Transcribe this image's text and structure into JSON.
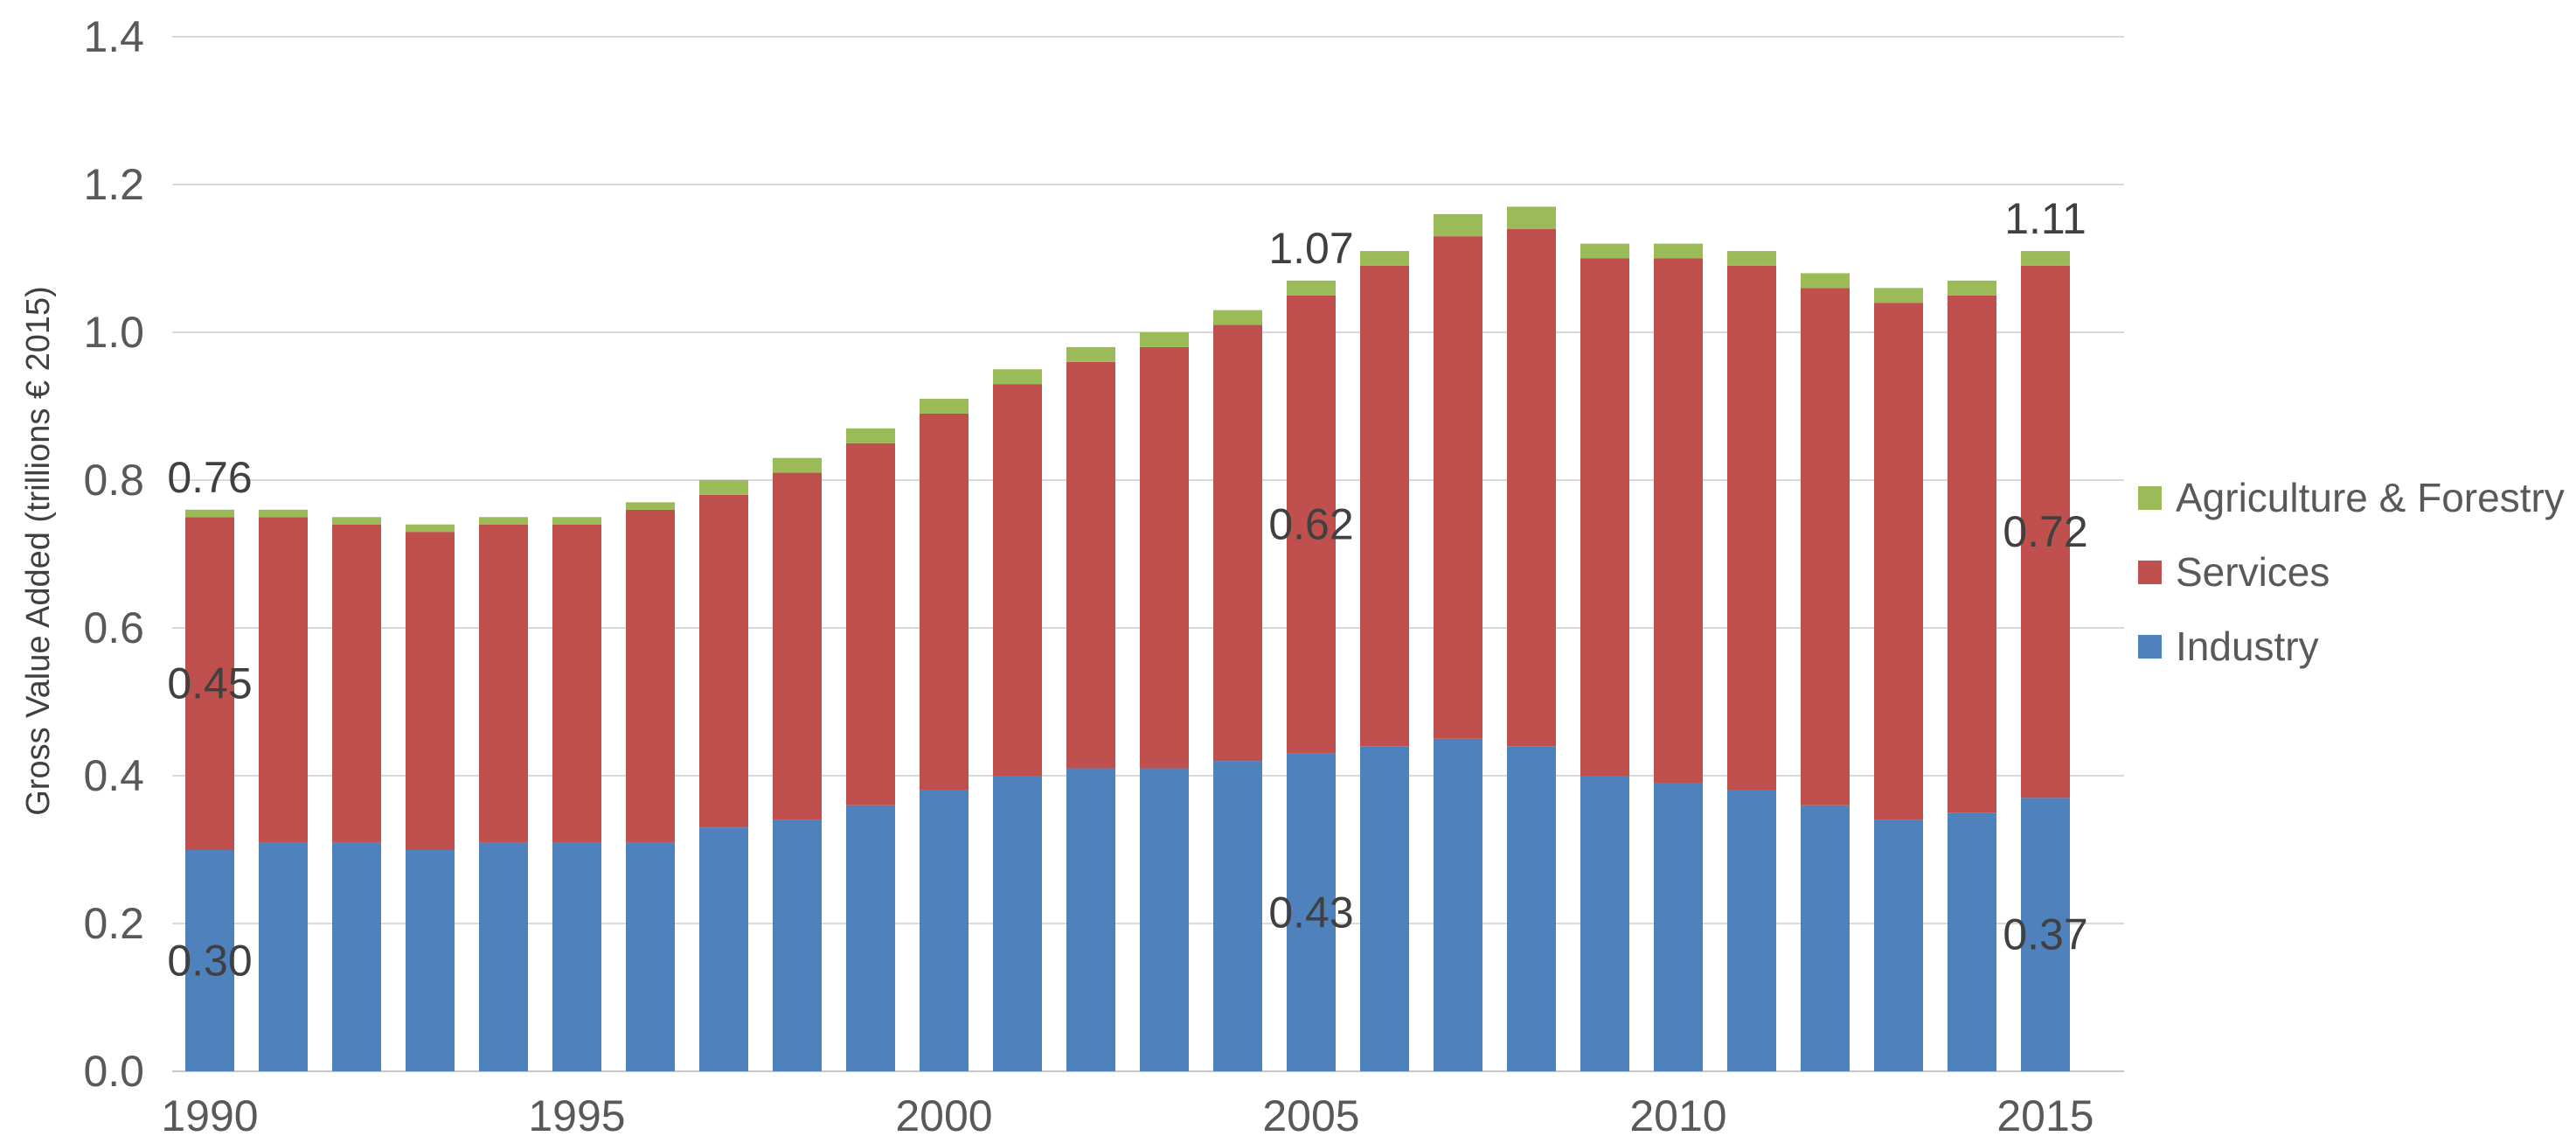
{
  "colors": {
    "background": "#ffffff",
    "industry": "#4F81BD",
    "services": "#C0504D",
    "agriculture": "#9BBB59",
    "gridline": "#D9D9D9",
    "axis_line": "#C6C6C6",
    "tick_text": "#595959",
    "data_label_text": "#404040",
    "axis_title_text": "#404040"
  },
  "chart_data": {
    "type": "bar",
    "stacked": true,
    "title": "",
    "xlabel": "",
    "ylabel": "Gross Value Added  (trillions € 2015)",
    "ylim": [
      0,
      1.4
    ],
    "ytick_step": 0.2,
    "yticks": [
      "0.0",
      "0.2",
      "0.4",
      "0.6",
      "0.8",
      "1.0",
      "1.2",
      "1.4"
    ],
    "grid": true,
    "categories": [
      1990,
      1991,
      1992,
      1993,
      1994,
      1995,
      1996,
      1997,
      1998,
      1999,
      2000,
      2001,
      2002,
      2003,
      2004,
      2005,
      2006,
      2007,
      2008,
      2009,
      2010,
      2011,
      2012,
      2013,
      2014,
      2015
    ],
    "xticks_shown": [
      1990,
      1995,
      2000,
      2005,
      2010,
      2015
    ],
    "series": [
      {
        "name": "Industry",
        "color": "#4F81BD",
        "values": [
          0.3,
          0.31,
          0.31,
          0.3,
          0.31,
          0.31,
          0.31,
          0.33,
          0.34,
          0.36,
          0.38,
          0.4,
          0.41,
          0.41,
          0.42,
          0.43,
          0.44,
          0.45,
          0.44,
          0.4,
          0.39,
          0.38,
          0.36,
          0.34,
          0.35,
          0.37
        ]
      },
      {
        "name": "Services",
        "color": "#C0504D",
        "values": [
          0.45,
          0.44,
          0.43,
          0.43,
          0.43,
          0.43,
          0.45,
          0.45,
          0.47,
          0.49,
          0.51,
          0.53,
          0.55,
          0.57,
          0.59,
          0.62,
          0.65,
          0.68,
          0.7,
          0.7,
          0.71,
          0.71,
          0.7,
          0.7,
          0.7,
          0.72
        ]
      },
      {
        "name": "Agriculture & Forestry",
        "color": "#9BBB59",
        "values": [
          0.01,
          0.01,
          0.01,
          0.01,
          0.01,
          0.01,
          0.01,
          0.02,
          0.02,
          0.02,
          0.02,
          0.02,
          0.02,
          0.02,
          0.02,
          0.02,
          0.02,
          0.03,
          0.03,
          0.02,
          0.02,
          0.02,
          0.02,
          0.02,
          0.02,
          0.02
        ]
      }
    ],
    "totals": [
      0.76,
      0.76,
      0.75,
      0.74,
      0.75,
      0.75,
      0.77,
      0.8,
      0.83,
      0.87,
      0.91,
      0.95,
      0.98,
      1.0,
      1.03,
      1.07,
      1.11,
      1.16,
      1.17,
      1.12,
      1.12,
      1.11,
      1.08,
      1.06,
      1.07,
      1.11
    ],
    "data_labels": [
      {
        "year": 1990,
        "target": "total",
        "text": "0.76"
      },
      {
        "year": 1990,
        "target": "Services",
        "text": "0.45"
      },
      {
        "year": 1990,
        "target": "Industry",
        "text": "0.30"
      },
      {
        "year": 2005,
        "target": "total",
        "text": "1.07"
      },
      {
        "year": 2005,
        "target": "Services",
        "text": "0.62"
      },
      {
        "year": 2005,
        "target": "Industry",
        "text": "0.43"
      },
      {
        "year": 2015,
        "target": "total",
        "text": "1.11"
      },
      {
        "year": 2015,
        "target": "Services",
        "text": "0.72"
      },
      {
        "year": 2015,
        "target": "Industry",
        "text": "0.37"
      }
    ],
    "legend": {
      "position": "right",
      "items": [
        "Agriculture & Forestry",
        "Services",
        "Industry"
      ]
    }
  }
}
